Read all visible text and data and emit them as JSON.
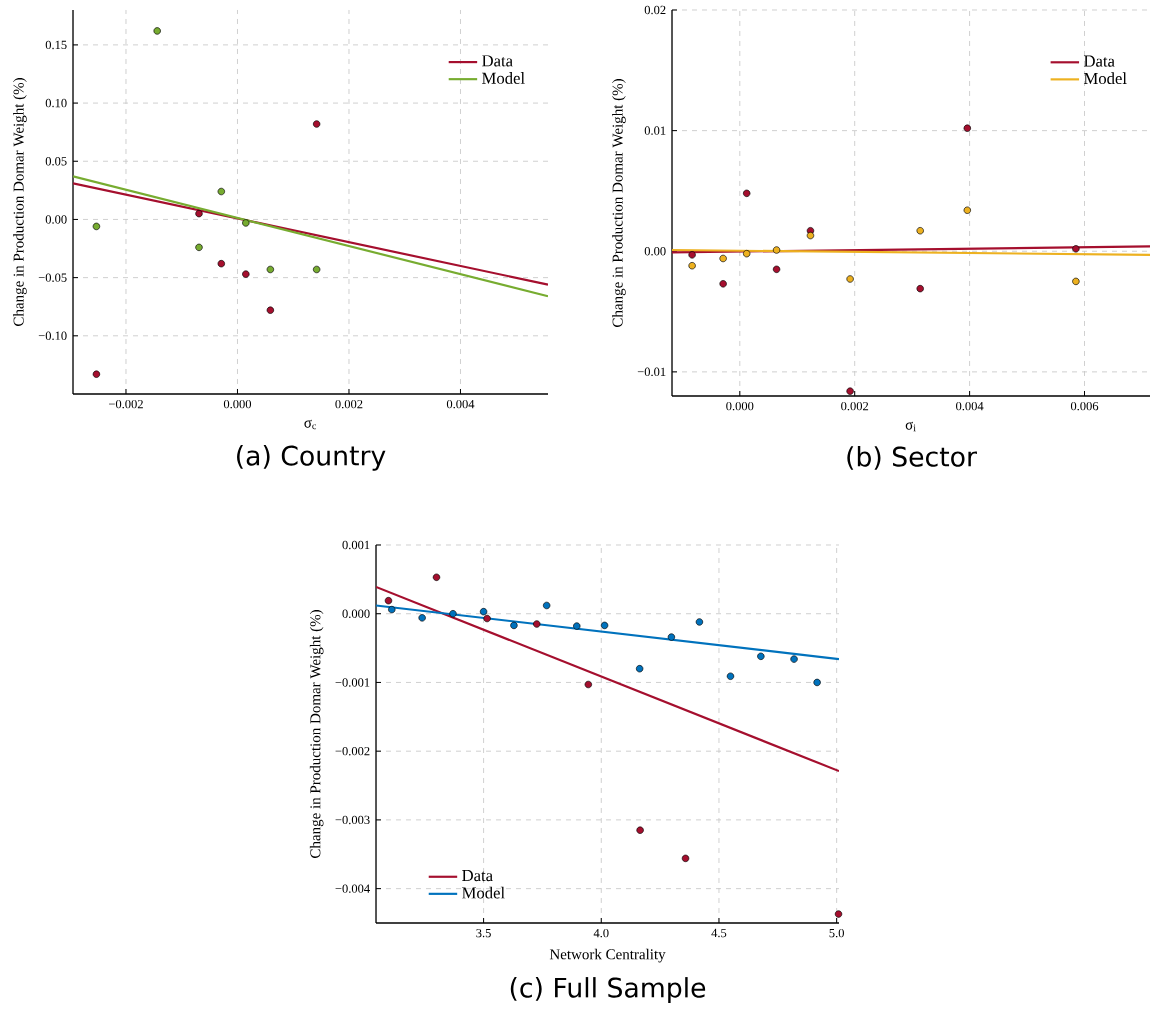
{
  "chart_data": [
    {
      "type": "scatter",
      "title": "(a) Country",
      "xlabel": "σ$_{c}$",
      "ylabel": "Change in Production Domar Weight (%)",
      "grid": true,
      "legend": "top right",
      "xlim": [
        -0.00295,
        0.00557
      ],
      "ylim": [
        -0.15,
        0.18
      ],
      "xticks": [
        {
          "value": -0.002,
          "label": "−0.002"
        },
        {
          "value": 0,
          "label": "0.000"
        },
        {
          "value": 0.002,
          "label": "0.002"
        },
        {
          "value": 0.004,
          "label": "0.004"
        }
      ],
      "yticks": [
        {
          "value": -0.1,
          "label": "−0.10"
        },
        {
          "value": -0.05,
          "label": "−0.05"
        },
        {
          "value": 0,
          "label": "0.00"
        },
        {
          "value": 0.05,
          "label": "0.05"
        },
        {
          "value": 0.1,
          "label": "0.10"
        },
        {
          "value": 0.15,
          "label": "0.15"
        }
      ],
      "series": [
        {
          "name": "Data",
          "type": "line",
          "color": "#a50f2e",
          "x": [
            -0.00295,
            0.00557
          ],
          "values": [
            0.031,
            -0.056
          ]
        },
        {
          "name": "Model",
          "type": "line",
          "color": "#77ac30",
          "x": [
            -0.00295,
            0.00557
          ],
          "values": [
            0.037,
            -0.066
          ]
        },
        {
          "marker": "circle",
          "color": "#a50f2e",
          "x": [
            -0.00253,
            -0.00069,
            -0.00029,
            0.00015,
            0.00059,
            0.00142
          ],
          "values": [
            -0.133,
            0.005,
            -0.038,
            -0.047,
            -0.078,
            0.082
          ]
        },
        {
          "marker": "circle",
          "color": "#77ac30",
          "x": [
            -0.00253,
            -0.00144,
            -0.00069,
            -0.00029,
            0.00015,
            0.00059,
            0.00142
          ],
          "values": [
            -0.006,
            0.162,
            -0.024,
            0.024,
            -0.003,
            -0.043,
            -0.043
          ]
        }
      ]
    },
    {
      "type": "scatter",
      "title": "(b) Sector",
      "xlabel": "σ$_{i}$",
      "ylabel": "Change in Production Domar Weight (%)",
      "grid": true,
      "legend": "top right",
      "xlim": [
        -0.00118,
        0.00714
      ],
      "ylim": [
        -0.012,
        0.02
      ],
      "xticks": [
        {
          "value": 0,
          "label": "0.000"
        },
        {
          "value": 0.002,
          "label": "0.002"
        },
        {
          "value": 0.004,
          "label": "0.004"
        },
        {
          "value": 0.006,
          "label": "0.006"
        }
      ],
      "yticks": [
        {
          "value": -0.01,
          "label": "−0.01"
        },
        {
          "value": 0,
          "label": "0.00"
        },
        {
          "value": 0.01,
          "label": "0.01"
        },
        {
          "value": 0.02,
          "label": "0.02"
        }
      ],
      "series": [
        {
          "name": "Data",
          "type": "line",
          "color": "#a50f2e",
          "x": [
            -0.00118,
            0.00714
          ],
          "values": [
            -0.0001,
            0.0004
          ]
        },
        {
          "name": "Model",
          "type": "line",
          "color": "#edb120",
          "x": [
            -0.00118,
            0.00714
          ],
          "values": [
            0.0001,
            -0.0003
          ]
        },
        {
          "marker": "circle",
          "color": "#a50f2e",
          "x": [
            -0.00083,
            -0.00029,
            0.00012,
            0.00064,
            0.00123,
            0.00192,
            0.00314,
            0.00396,
            0.00585
          ],
          "values": [
            -0.0003,
            -0.0027,
            0.0048,
            -0.0015,
            0.0017,
            -0.0116,
            -0.0031,
            0.0102,
            0.0002
          ]
        },
        {
          "marker": "circle",
          "color": "#edb120",
          "x": [
            -0.00083,
            -0.00029,
            0.00012,
            0.00064,
            0.00123,
            0.00192,
            0.00314,
            0.00396,
            0.00585
          ],
          "values": [
            -0.0012,
            -0.0006,
            -0.0002,
            0.0001,
            0.0013,
            -0.0023,
            0.0017,
            0.0034,
            -0.0025
          ]
        }
      ]
    },
    {
      "type": "scatter",
      "title": "(c) Full Sample",
      "xlabel": "Network Centrality",
      "ylabel": "Change in Production Domar Weight (%)",
      "grid": true,
      "legend": "bottom left",
      "xlim": [
        3.043,
        5.01
      ],
      "ylim": [
        -0.0045,
        0.001
      ],
      "xticks": [
        3.5,
        {
          "value": 4,
          "label": "4.0"
        },
        4.5,
        {
          "value": 5,
          "label": "5.0"
        }
      ],
      "yticks": [
        {
          "value": -0.004,
          "label": "−0.004"
        },
        {
          "value": -0.003,
          "label": "−0.003"
        },
        {
          "value": -0.002,
          "label": "−0.002"
        },
        {
          "value": -0.001,
          "label": "−0.001"
        },
        {
          "value": 0,
          "label": "0.000"
        },
        0.001
      ],
      "series": [
        {
          "name": "Data",
          "type": "line",
          "color": "#a50f2e",
          "x": [
            3.043,
            5.01
          ],
          "values": [
            0.00039,
            -0.00229
          ]
        },
        {
          "name": "Model",
          "type": "line",
          "color": "#0072bd",
          "x": [
            3.043,
            5.01
          ],
          "values": [
            0.00012,
            -0.00066
          ]
        },
        {
          "marker": "circle",
          "color": "#a50f2e",
          "x": [
            3.096,
            3.3,
            3.515,
            3.726,
            3.945,
            4.165,
            4.358,
            5.008
          ],
          "values": [
            0.00019,
            0.00053,
            -7e-05,
            -0.00015,
            -0.00103,
            -0.00315,
            -0.00356,
            -0.00437
          ]
        },
        {
          "marker": "circle",
          "color": "#0072bd",
          "x": [
            3.11,
            3.239,
            3.37,
            3.5,
            3.629,
            3.768,
            3.896,
            4.014,
            4.163,
            4.298,
            4.417,
            4.549,
            4.678,
            4.819,
            4.917
          ],
          "values": [
            6e-05,
            -6e-05,
            0.0,
            3e-05,
            -0.00017,
            0.00012,
            -0.00018,
            -0.00017,
            -0.0008,
            -0.00034,
            -0.00012,
            -0.00091,
            -0.00062,
            -0.00066,
            -0.001
          ]
        }
      ]
    }
  ]
}
